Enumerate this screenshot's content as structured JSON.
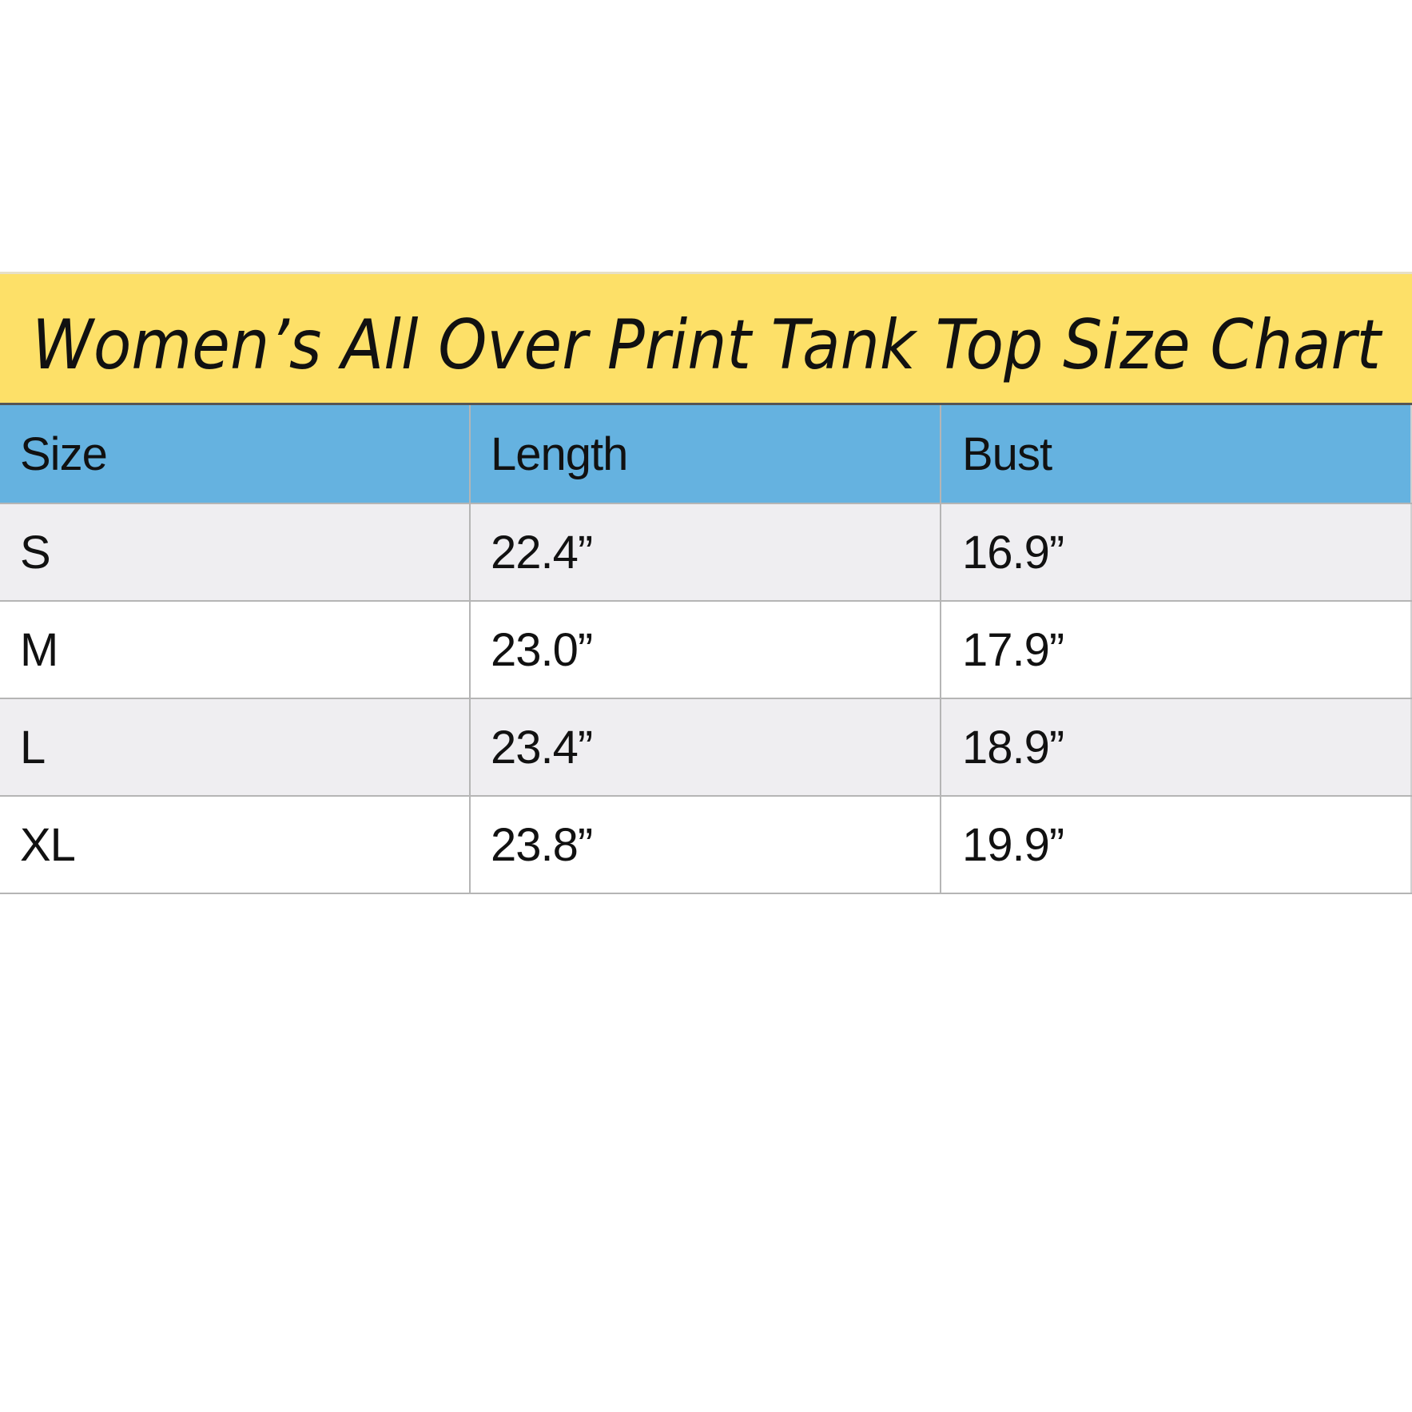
{
  "title": "Women’s All Over Print Tank Top Size Chart",
  "colors": {
    "title_bg": "#FDE068",
    "header_bg": "#65B2E0",
    "alt_row_bg": "#EFEEF1"
  },
  "headers": [
    "Size",
    "Length",
    "Bust"
  ],
  "rows": [
    [
      "S",
      "22.4”",
      "16.9”"
    ],
    [
      "M",
      "23.0”",
      "17.9”"
    ],
    [
      "L",
      "23.4”",
      "18.9”"
    ],
    [
      "XL",
      "23.8”",
      "19.9”"
    ]
  ]
}
